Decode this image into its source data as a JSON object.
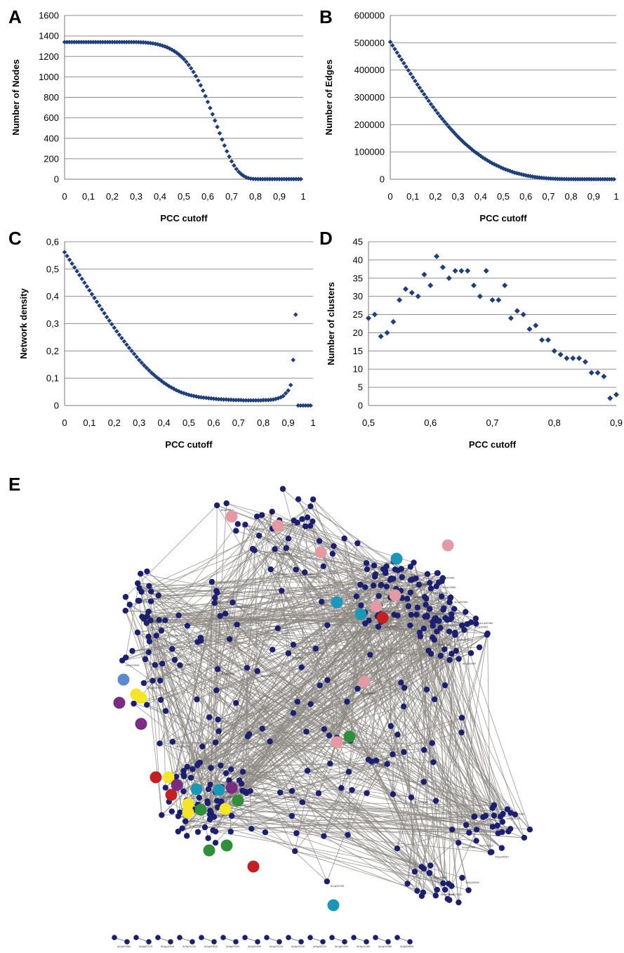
{
  "chart_data": [
    {
      "panel": "A",
      "type": "scatter",
      "title": "",
      "xlabel": "PCC cutoff",
      "ylabel": "Number of Nodes",
      "xlim": [
        0,
        1
      ],
      "ylim": [
        0,
        1600
      ],
      "x_ticks": [
        "0",
        "0,1",
        "0,2",
        "0,3",
        "0,4",
        "0,5",
        "0,6",
        "0,7",
        "0,8",
        "0,9",
        "1"
      ],
      "y_ticks": [
        "0",
        "200",
        "400",
        "600",
        "800",
        "1000",
        "1200",
        "1400",
        "1600"
      ],
      "grid": "horizontal",
      "marker_color": "#1f3f7a",
      "series": [
        {
          "x": [
            0,
            0.01,
            0.02,
            0.03,
            0.04,
            0.05,
            0.06,
            0.07,
            0.08,
            0.09,
            0.1,
            0.11,
            0.12,
            0.13,
            0.14,
            0.15,
            0.16,
            0.17,
            0.18,
            0.19,
            0.2,
            0.21,
            0.22,
            0.23,
            0.24,
            0.25,
            0.26,
            0.27,
            0.28,
            0.29,
            0.3,
            0.31,
            0.32,
            0.33,
            0.34,
            0.35,
            0.36,
            0.37,
            0.38,
            0.39,
            0.4,
            0.41,
            0.42,
            0.43,
            0.44,
            0.45,
            0.46,
            0.47,
            0.48,
            0.49,
            0.5,
            0.51,
            0.52,
            0.53,
            0.54,
            0.55,
            0.56,
            0.57,
            0.58,
            0.59,
            0.6,
            0.61,
            0.62,
            0.63,
            0.64,
            0.65,
            0.66,
            0.67,
            0.68,
            0.69,
            0.7,
            0.71,
            0.72,
            0.73,
            0.74,
            0.75,
            0.76,
            0.77,
            0.78,
            0.79,
            0.8,
            0.81,
            0.82,
            0.83,
            0.84,
            0.85,
            0.86,
            0.87,
            0.88,
            0.89,
            0.9,
            0.91,
            0.92,
            0.93,
            0.94,
            0.95,
            0.96,
            0.97,
            0.98,
            0.99
          ],
          "y": [
            1340,
            1340,
            1340,
            1340,
            1340,
            1340,
            1340,
            1340,
            1340,
            1340,
            1340,
            1340,
            1340,
            1340,
            1340,
            1340,
            1340,
            1340,
            1340,
            1340,
            1340,
            1340,
            1340,
            1340,
            1340,
            1340,
            1340,
            1340,
            1340,
            1340,
            1340,
            1339,
            1338,
            1337,
            1335,
            1333,
            1330,
            1327,
            1323,
            1318,
            1312,
            1305,
            1297,
            1288,
            1277,
            1265,
            1251,
            1235,
            1217,
            1196,
            1173,
            1147,
            1117,
            1084,
            1048,
            1008,
            964,
            917,
            866,
            812,
            755,
            696,
            635,
            573,
            511,
            449,
            388,
            329,
            273,
            221,
            175,
            134,
            100,
            72,
            50,
            33,
            20,
            11,
            6,
            3,
            2,
            1,
            1,
            1,
            1,
            1,
            1,
            1,
            1,
            1,
            1,
            1,
            1,
            1,
            1,
            1,
            1,
            1,
            1,
            1
          ]
        }
      ]
    },
    {
      "panel": "B",
      "type": "scatter",
      "title": "",
      "xlabel": "PCC cutoff",
      "ylabel": "Number of Edges",
      "xlim": [
        0,
        1
      ],
      "ylim": [
        0,
        600000
      ],
      "x_ticks": [
        "0",
        "0,1",
        "0,2",
        "0,3",
        "0,4",
        "0,5",
        "0,6",
        "0,7",
        "0,8",
        "0,9",
        "1"
      ],
      "y_ticks": [
        "0",
        "100000",
        "200000",
        "300000",
        "400000",
        "500000",
        "600000"
      ],
      "grid": "horizontal",
      "marker_color": "#1f3f7a",
      "series": [
        {
          "x": [
            0,
            0.01,
            0.02,
            0.03,
            0.04,
            0.05,
            0.06,
            0.07,
            0.08,
            0.09,
            0.1,
            0.11,
            0.12,
            0.13,
            0.14,
            0.15,
            0.16,
            0.17,
            0.18,
            0.19,
            0.2,
            0.21,
            0.22,
            0.23,
            0.24,
            0.25,
            0.26,
            0.27,
            0.28,
            0.29,
            0.3,
            0.31,
            0.32,
            0.33,
            0.34,
            0.35,
            0.36,
            0.37,
            0.38,
            0.39,
            0.4,
            0.41,
            0.42,
            0.43,
            0.44,
            0.45,
            0.46,
            0.47,
            0.48,
            0.49,
            0.5,
            0.51,
            0.52,
            0.53,
            0.54,
            0.55,
            0.56,
            0.57,
            0.58,
            0.59,
            0.6,
            0.61,
            0.62,
            0.63,
            0.64,
            0.65,
            0.66,
            0.67,
            0.68,
            0.69,
            0.7,
            0.71,
            0.72,
            0.73,
            0.74,
            0.75,
            0.76,
            0.77,
            0.78,
            0.79,
            0.8,
            0.81,
            0.82,
            0.83,
            0.84,
            0.85,
            0.86,
            0.87,
            0.88,
            0.89,
            0.9,
            0.91,
            0.92,
            0.93,
            0.94,
            0.95,
            0.96,
            0.97,
            0.98,
            0.99
          ],
          "y": [
            503000,
            490000,
            477000,
            464000,
            451000,
            438000,
            425000,
            412000,
            399000,
            386000,
            373000,
            360000,
            347000,
            335000,
            323000,
            311000,
            299000,
            287000,
            275000,
            264000,
            253000,
            242000,
            231000,
            221000,
            211000,
            201000,
            191000,
            182000,
            173000,
            164000,
            155000,
            147000,
            139000,
            131000,
            124000,
            117000,
            110000,
            103000,
            97000,
            91000,
            85000,
            79000,
            74000,
            69000,
            64000,
            59000,
            55000,
            51000,
            47000,
            43000,
            39000,
            36000,
            33000,
            30000,
            27000,
            24000,
            22000,
            20000,
            18000,
            16000,
            14000,
            12500,
            11000,
            9500,
            8200,
            7000,
            6000,
            5000,
            4200,
            3500,
            2900,
            2400,
            1900,
            1500,
            1200,
            900,
            700,
            550,
            400,
            300,
            250,
            200,
            150,
            120,
            100,
            80,
            60,
            50,
            40,
            30,
            20,
            15,
            10,
            8,
            6,
            4,
            3,
            2,
            1,
            1
          ]
        }
      ]
    },
    {
      "panel": "C",
      "type": "scatter",
      "title": "",
      "xlabel": "PCC cutoff",
      "ylabel": "Network density",
      "xlim": [
        0,
        1
      ],
      "ylim": [
        0,
        0.6
      ],
      "x_ticks": [
        "0",
        "0,1",
        "0,2",
        "0,3",
        "0,4",
        "0,5",
        "0,6",
        "0,7",
        "0,8",
        "0,9",
        "1"
      ],
      "y_ticks": [
        "0",
        "0,1",
        "0,2",
        "0,3",
        "0,4",
        "0,5",
        "0,6"
      ],
      "grid": "horizontal",
      "marker_color": "#1f3f7a",
      "series": [
        {
          "x": [
            0,
            0.01,
            0.02,
            0.03,
            0.04,
            0.05,
            0.06,
            0.07,
            0.08,
            0.09,
            0.1,
            0.11,
            0.12,
            0.13,
            0.14,
            0.15,
            0.16,
            0.17,
            0.18,
            0.19,
            0.2,
            0.21,
            0.22,
            0.23,
            0.24,
            0.25,
            0.26,
            0.27,
            0.28,
            0.29,
            0.3,
            0.31,
            0.32,
            0.33,
            0.34,
            0.35,
            0.36,
            0.37,
            0.38,
            0.39,
            0.4,
            0.41,
            0.42,
            0.43,
            0.44,
            0.45,
            0.46,
            0.47,
            0.48,
            0.49,
            0.5,
            0.51,
            0.52,
            0.53,
            0.54,
            0.55,
            0.56,
            0.57,
            0.58,
            0.59,
            0.6,
            0.61,
            0.62,
            0.63,
            0.64,
            0.65,
            0.66,
            0.67,
            0.68,
            0.69,
            0.7,
            0.71,
            0.72,
            0.73,
            0.74,
            0.75,
            0.76,
            0.77,
            0.78,
            0.79,
            0.8,
            0.81,
            0.82,
            0.83,
            0.84,
            0.85,
            0.86,
            0.87,
            0.88,
            0.89,
            0.9,
            0.91,
            0.92,
            0.93,
            0.94,
            0.95,
            0.96,
            0.97,
            0.98,
            0.99
          ],
          "y": [
            0.562,
            0.548,
            0.534,
            0.52,
            0.506,
            0.492,
            0.478,
            0.464,
            0.45,
            0.436,
            0.422,
            0.408,
            0.394,
            0.38,
            0.366,
            0.352,
            0.338,
            0.324,
            0.311,
            0.298,
            0.285,
            0.272,
            0.259,
            0.247,
            0.235,
            0.223,
            0.211,
            0.2,
            0.189,
            0.178,
            0.167,
            0.157,
            0.147,
            0.138,
            0.129,
            0.12,
            0.112,
            0.104,
            0.097,
            0.09,
            0.083,
            0.077,
            0.071,
            0.066,
            0.061,
            0.056,
            0.052,
            0.048,
            0.045,
            0.042,
            0.039,
            0.037,
            0.035,
            0.033,
            0.031,
            0.03,
            0.029,
            0.028,
            0.027,
            0.026,
            0.025,
            0.024,
            0.023,
            0.023,
            0.022,
            0.022,
            0.021,
            0.021,
            0.02,
            0.02,
            0.02,
            0.02,
            0.019,
            0.019,
            0.019,
            0.019,
            0.019,
            0.019,
            0.019,
            0.019,
            0.02,
            0.02,
            0.02,
            0.021,
            0.022,
            0.024,
            0.027,
            0.03,
            0.035,
            0.045,
            0.055,
            0.075,
            0.167,
            0.333,
            0,
            0,
            0,
            0,
            0,
            0
          ]
        }
      ]
    },
    {
      "panel": "D",
      "type": "scatter",
      "title": "",
      "xlabel": "PCC cutoff",
      "ylabel": "Number of clusters",
      "xlim": [
        0.5,
        0.9
      ],
      "ylim": [
        0,
        45
      ],
      "x_ticks": [
        "0,5",
        "0,6",
        "0,7",
        "0,8",
        "0,9"
      ],
      "y_ticks": [
        "0",
        "5",
        "10",
        "15",
        "20",
        "25",
        "30",
        "35",
        "40",
        "45"
      ],
      "grid": "horizontal",
      "marker_color": "#1f3f7a",
      "series": [
        {
          "x": [
            0.5,
            0.51,
            0.52,
            0.53,
            0.54,
            0.55,
            0.56,
            0.57,
            0.58,
            0.59,
            0.6,
            0.61,
            0.62,
            0.63,
            0.64,
            0.65,
            0.66,
            0.67,
            0.68,
            0.69,
            0.7,
            0.71,
            0.72,
            0.73,
            0.74,
            0.75,
            0.76,
            0.77,
            0.78,
            0.79,
            0.8,
            0.81,
            0.82,
            0.83,
            0.84,
            0.85,
            0.86,
            0.87,
            0.88,
            0.89,
            0.9
          ],
          "y": [
            24,
            25,
            19,
            20,
            23,
            29,
            32,
            31,
            30,
            36,
            33,
            41,
            38,
            35,
            37,
            37,
            37,
            33,
            30,
            37,
            29,
            29,
            33,
            24,
            26,
            25,
            21,
            22,
            18,
            18,
            15,
            14,
            13,
            13,
            13,
            12,
            9,
            9,
            8,
            2,
            3
          ]
        }
      ]
    },
    {
      "panel": "E",
      "type": "network",
      "node_color": "#1c1f6e",
      "edge_color": "#8a8580",
      "highlight_colors": [
        "#e39aa4",
        "#1b97b7",
        "#c42021",
        "#f4e529",
        "#7a2b82",
        "#2f8f3a",
        "#5a8ad0"
      ]
    }
  ],
  "panel_letters": {
    "a": "A",
    "b": "B",
    "c": "C",
    "d": "D",
    "e": "E"
  },
  "network_labels": [
    "At1g55960",
    "At5g02570",
    "At4g14910",
    "At3g25150",
    "At2g40610",
    "At5g03555",
    "At2g30590",
    "At2g33220",
    "At4g19010",
    "At5g48310",
    "At1g61500",
    "At3g11490",
    "At1g19080",
    "At4g28650",
    "At2g15300",
    "At3g09410",
    "At5g43200",
    "At1g80060",
    "At4g23520",
    "At2g47240",
    "At1g27710",
    "At3g61750",
    "At5g18900",
    "At4g35410"
  ]
}
